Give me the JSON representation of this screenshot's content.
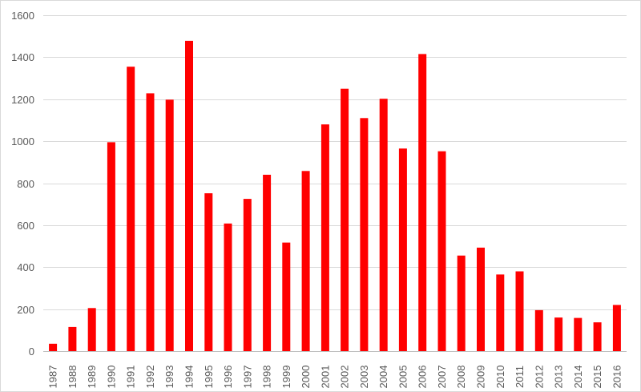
{
  "chart_data": {
    "type": "bar",
    "title": "",
    "xlabel": "",
    "ylabel": "",
    "ylim": [
      0,
      1600
    ],
    "yticks": [
      0,
      200,
      400,
      600,
      800,
      1000,
      1200,
      1400,
      1600
    ],
    "grid": true,
    "legend": "none",
    "bar_color": "#ff0000",
    "categories": [
      "1987",
      "1988",
      "1989",
      "1990",
      "1991",
      "1992",
      "1993",
      "1994",
      "1995",
      "1996",
      "1997",
      "1998",
      "1999",
      "2000",
      "2001",
      "2002",
      "2003",
      "2004",
      "2005",
      "2006",
      "2007",
      "2008",
      "2009",
      "2010",
      "2011",
      "2012",
      "2013",
      "2014",
      "2015",
      "2016"
    ],
    "values": [
      35,
      115,
      205,
      995,
      1355,
      1228,
      1198,
      1478,
      752,
      608,
      725,
      840,
      517,
      858,
      1080,
      1250,
      1110,
      1202,
      965,
      1415,
      952,
      455,
      493,
      365,
      380,
      195,
      160,
      158,
      137,
      220
    ]
  }
}
